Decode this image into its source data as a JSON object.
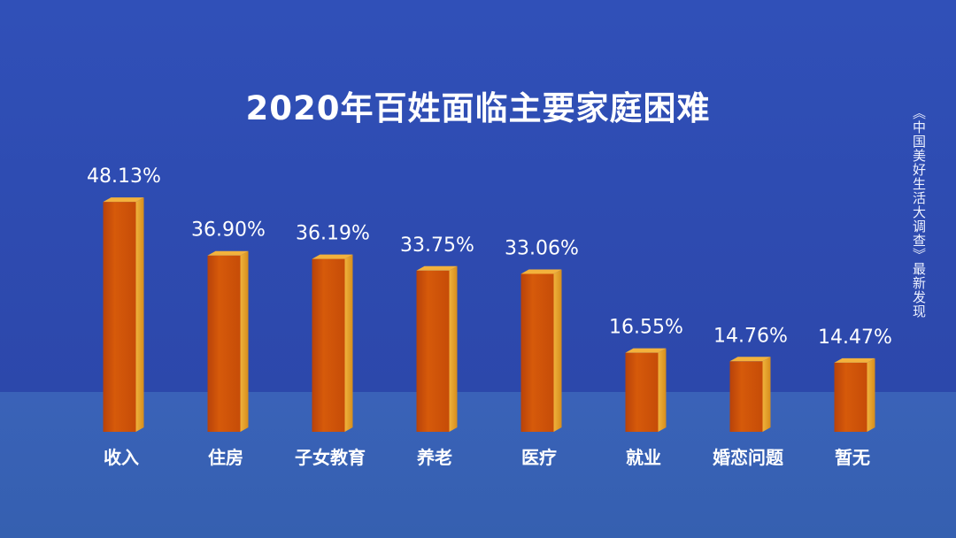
{
  "title": "2020年百姓面临主要家庭困难",
  "source_note": "《中国美好生活大调查》最新发现",
  "colors": {
    "background": "#2d49ad",
    "floor": "#3762b3",
    "bar_front": "#d2570a",
    "bar_side": "#e9a22a",
    "bar_top": "#f3b23c",
    "text": "#ffffff"
  },
  "chart_data": {
    "type": "bar",
    "title": "2020年百姓面临主要家庭困难",
    "categories": [
      "收入",
      "住房",
      "子女教育",
      "养老",
      "医疗",
      "就业",
      "婚恋问题",
      "暂无"
    ],
    "values": [
      48.13,
      36.9,
      36.19,
      33.75,
      33.06,
      16.55,
      14.76,
      14.47
    ],
    "value_labels": [
      "48.13%",
      "36.90%",
      "36.19%",
      "33.75%",
      "33.06%",
      "16.55%",
      "14.76%",
      "14.47%"
    ],
    "ylabel": "",
    "xlabel": "",
    "ylim": [
      0,
      50
    ],
    "grid": false,
    "legend": "none"
  }
}
